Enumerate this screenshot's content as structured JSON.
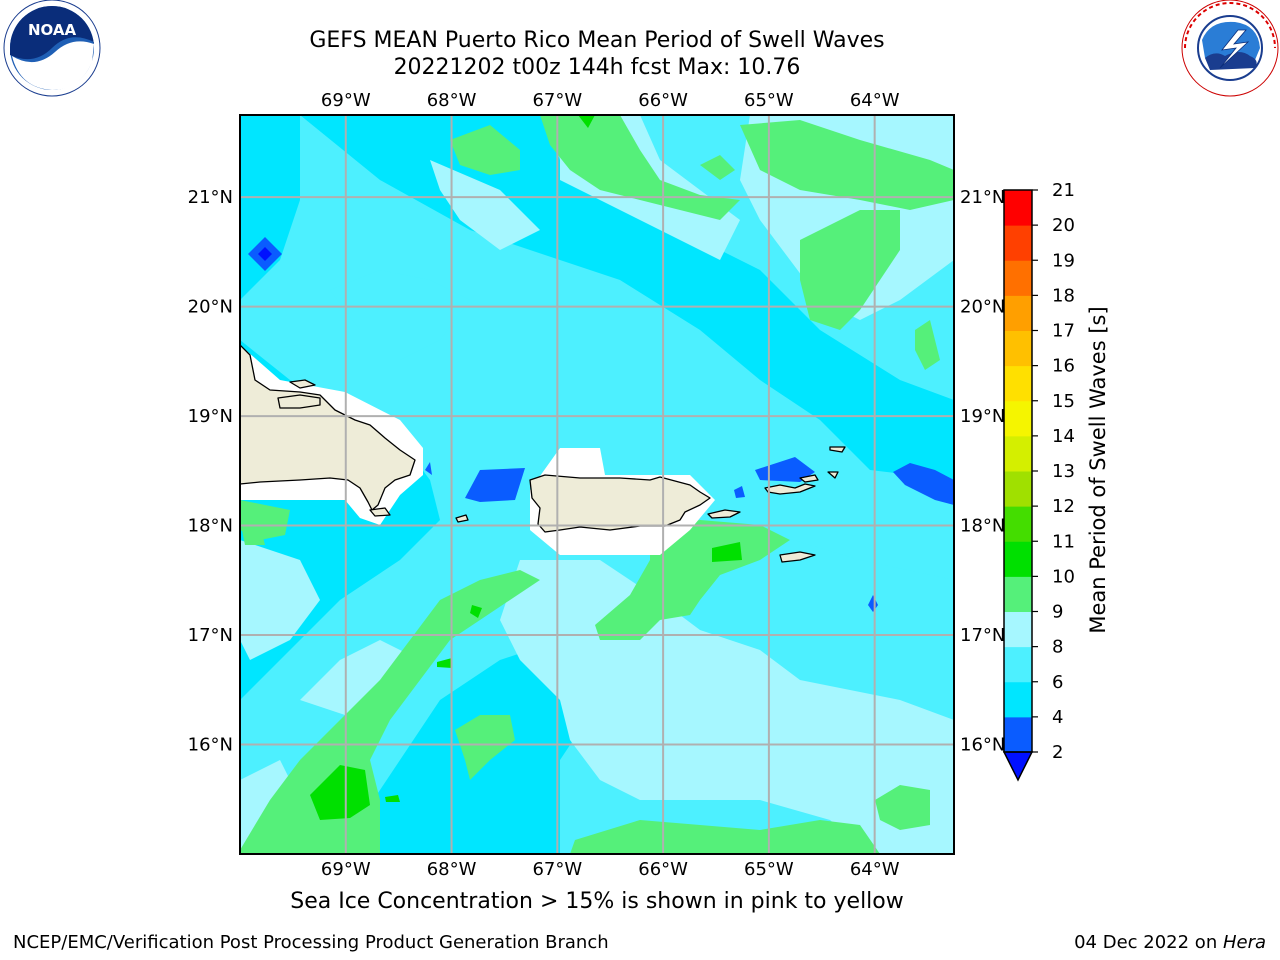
{
  "title_line1": "GEFS MEAN Puerto Rico Mean Period of Swell Waves",
  "title_line2": "20221202 t00z 144h fcst   Max: 10.76",
  "bottom_note": "Sea Ice Concentration > 15% is shown in pink to yellow",
  "footer_left": "NCEP/EMC/Verification Post Processing Product Generation Branch",
  "footer_right_prefix": "04 Dec 2022 on ",
  "footer_right_italic": "Hera",
  "logos": {
    "left": "NOAA",
    "right": "NATIONAL WEATHER SERVICE"
  },
  "colorbar": {
    "label": "Mean Period of Swell Waves [s]",
    "levels": [
      2,
      4,
      6,
      8,
      9,
      10,
      11,
      12,
      13,
      14,
      15,
      16,
      17,
      18,
      19,
      20,
      21
    ],
    "colors": [
      "#0a5cff",
      "#00e6ff",
      "#4df0ff",
      "#a6f7ff",
      "#55f07a",
      "#00e000",
      "#44dd00",
      "#a0e000",
      "#d4ef00",
      "#f5f500",
      "#ffe000",
      "#ffc000",
      "#ff9f00",
      "#ff7000",
      "#ff4000",
      "#ff0000"
    ],
    "extend_min_color": "#0010ff"
  },
  "map": {
    "lon_range": [
      -70,
      -63.25
    ],
    "lat_range": [
      15,
      21.75
    ],
    "lon_ticks": [
      "69°W",
      "68°W",
      "67°W",
      "66°W",
      "65°W",
      "64°W"
    ],
    "lon_tick_values": [
      -69,
      -68,
      -67,
      -66,
      -65,
      -64
    ],
    "lat_ticks": [
      "21°N",
      "20°N",
      "19°N",
      "18°N",
      "17°N",
      "16°N"
    ],
    "lat_tick_values": [
      21,
      20,
      19,
      18,
      17,
      16
    ],
    "land_color": "#eeecd8",
    "grid_color": "#b0b0b0",
    "background_field": "#00e6ff",
    "regions": [
      {
        "name": "Puerto Rico",
        "type": "land"
      },
      {
        "name": "Hispaniola",
        "type": "land"
      },
      {
        "name": "Virgin Islands",
        "type": "land"
      }
    ]
  }
}
